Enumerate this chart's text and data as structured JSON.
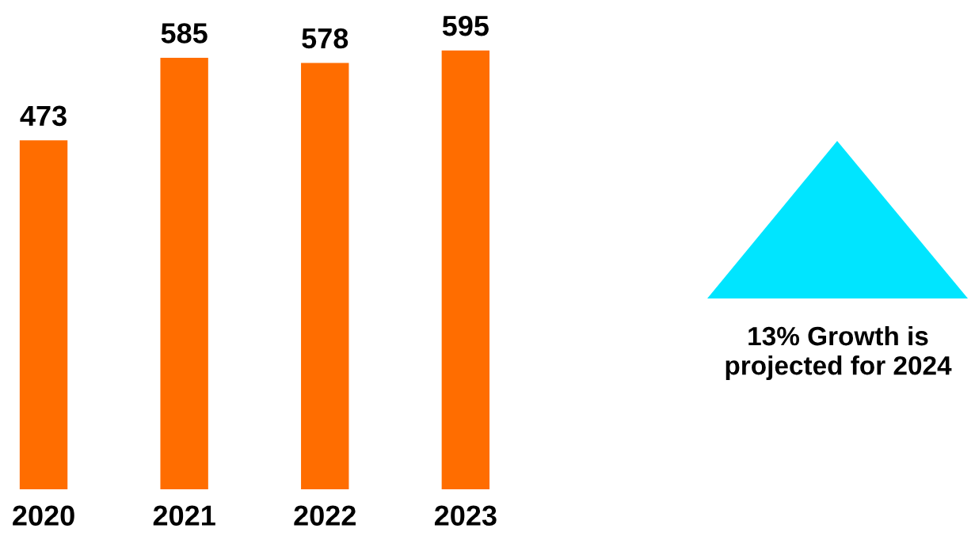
{
  "chart_data": {
    "type": "bar",
    "categories": [
      "2020",
      "2021",
      "2022",
      "2023"
    ],
    "values": [
      473,
      585,
      578,
      595
    ],
    "color": "#ff6d00",
    "data_labels": true,
    "grid": false,
    "legend": false,
    "annotations": [
      "13% Growth is\nprojected for 2024"
    ]
  }
}
